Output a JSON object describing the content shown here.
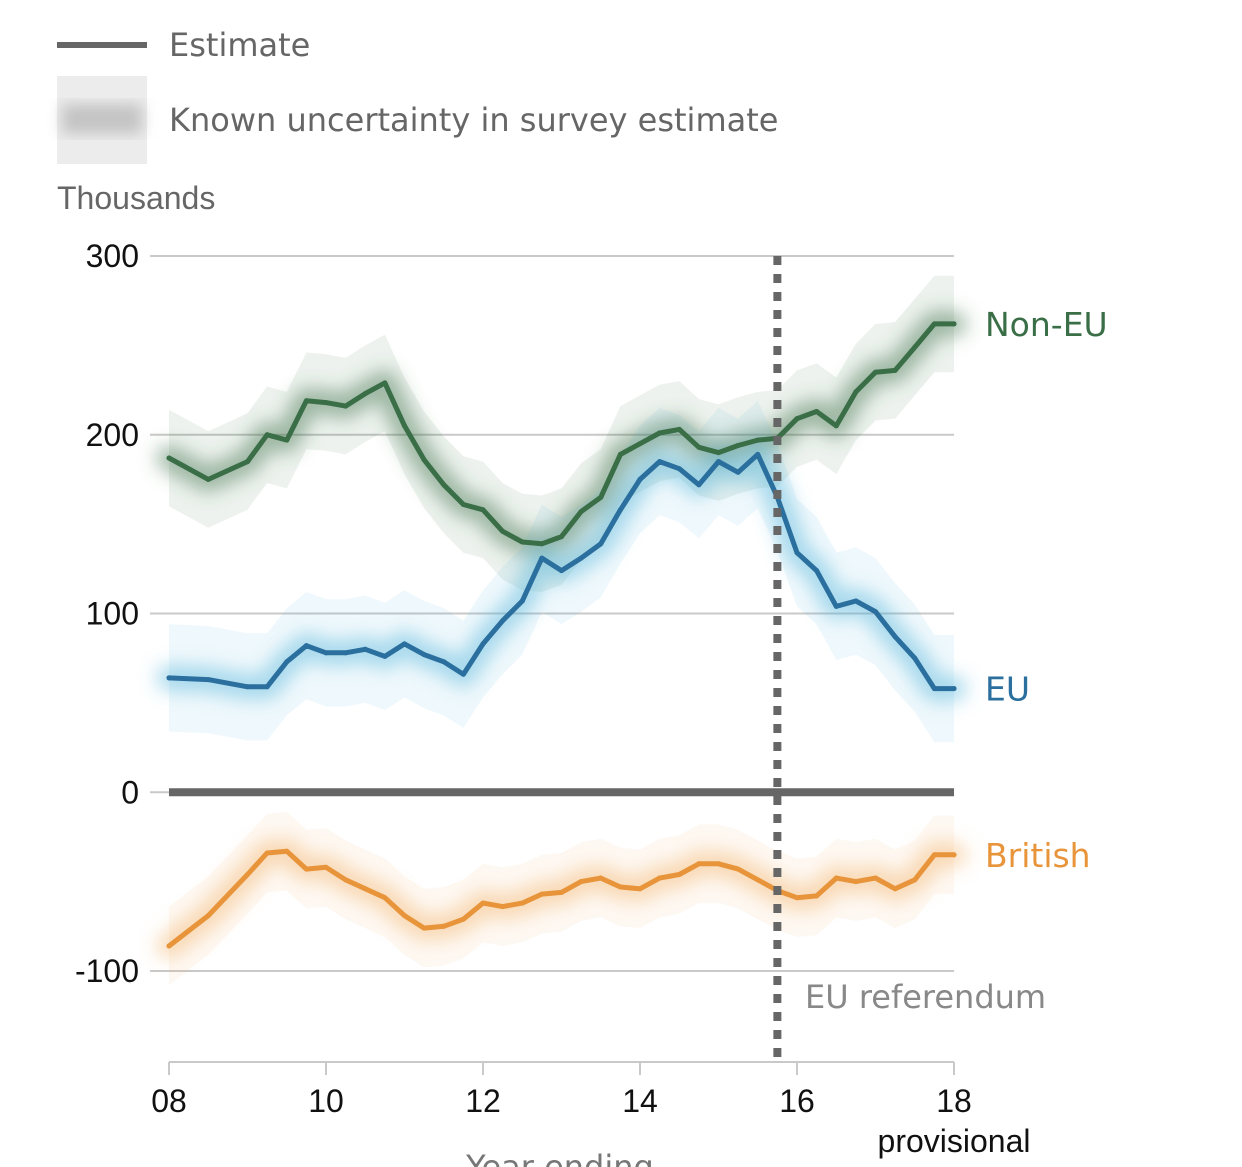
{
  "chart_data": {
    "type": "line",
    "legend": {
      "estimate_label": "Estimate",
      "uncertainty_label": "Known uncertainty in survey estimate"
    },
    "unit_label": "Thousands",
    "xlabel": "Year ending",
    "x_ticks": [
      "08",
      "10",
      "12",
      "14",
      "16",
      "18"
    ],
    "x_tick_values": [
      2008,
      2010,
      2012,
      2014,
      2016,
      2018
    ],
    "x_tick_note": "provisional",
    "xlim": [
      2008,
      2018
    ],
    "ylim": [
      -150,
      300
    ],
    "y_ticks": [
      300,
      200,
      100,
      0,
      -100
    ],
    "y_tick_labels": [
      "300",
      "200",
      "100",
      "0",
      "-100"
    ],
    "grid": true,
    "annotation": {
      "label": "EU referendum",
      "x": 2015.75
    },
    "series": [
      {
        "name": "Non-EU",
        "color": "#3a6e47",
        "band_color": "#3a6e47",
        "uncertainty": 27,
        "x": [
          2008.0,
          2008.5,
          2009.0,
          2009.25,
          2009.5,
          2009.75,
          2010.0,
          2010.25,
          2010.5,
          2010.75,
          2011.0,
          2011.25,
          2011.5,
          2011.75,
          2012.0,
          2012.25,
          2012.5,
          2012.75,
          2013.0,
          2013.25,
          2013.5,
          2013.75,
          2014.0,
          2014.25,
          2014.5,
          2014.75,
          2015.0,
          2015.25,
          2015.5,
          2015.75,
          2016.0,
          2016.25,
          2016.5,
          2016.75,
          2017.0,
          2017.25,
          2017.5,
          2017.75,
          2018.0
        ],
        "values": [
          187,
          175,
          185,
          200,
          197,
          219,
          218,
          216,
          223,
          229,
          205,
          186,
          172,
          161,
          158,
          146,
          140,
          139,
          143,
          157,
          165,
          189,
          195,
          201,
          203,
          193,
          190,
          194,
          197,
          198,
          209,
          213,
          205,
          224,
          235,
          236,
          249,
          262,
          262
        ]
      },
      {
        "name": "EU",
        "color": "#2a6f9e",
        "band_color": "#4fb3d9",
        "uncertainty": 30,
        "x": [
          2008.0,
          2008.5,
          2009.0,
          2009.25,
          2009.5,
          2009.75,
          2010.0,
          2010.25,
          2010.5,
          2010.75,
          2011.0,
          2011.25,
          2011.5,
          2011.75,
          2012.0,
          2012.25,
          2012.5,
          2012.75,
          2013.0,
          2013.25,
          2013.5,
          2013.75,
          2014.0,
          2014.25,
          2014.5,
          2014.75,
          2015.0,
          2015.25,
          2015.5,
          2015.75,
          2016.0,
          2016.25,
          2016.5,
          2016.75,
          2017.0,
          2017.25,
          2017.5,
          2017.75,
          2018.0
        ],
        "values": [
          64,
          63,
          59,
          59,
          73,
          82,
          78,
          78,
          80,
          76,
          83,
          77,
          73,
          66,
          83,
          96,
          107,
          131,
          124,
          131,
          139,
          158,
          175,
          185,
          181,
          172,
          185,
          179,
          189,
          165,
          134,
          124,
          104,
          107,
          101,
          87,
          75,
          58,
          58
        ]
      },
      {
        "name": "British",
        "color": "#e8943a",
        "band_color": "#f2b36a",
        "uncertainty": 22,
        "x": [
          2008.0,
          2008.5,
          2009.0,
          2009.25,
          2009.5,
          2009.75,
          2010.0,
          2010.25,
          2010.5,
          2010.75,
          2011.0,
          2011.25,
          2011.5,
          2011.75,
          2012.0,
          2012.25,
          2012.5,
          2012.75,
          2013.0,
          2013.25,
          2013.5,
          2013.75,
          2014.0,
          2014.25,
          2014.5,
          2014.75,
          2015.0,
          2015.25,
          2015.5,
          2015.75,
          2016.0,
          2016.25,
          2016.5,
          2016.75,
          2017.0,
          2017.25,
          2017.5,
          2017.75,
          2018.0
        ],
        "values": [
          -86,
          -69,
          -46,
          -34,
          -33,
          -43,
          -42,
          -49,
          -54,
          -59,
          -69,
          -76,
          -75,
          -71,
          -62,
          -64,
          -62,
          -57,
          -56,
          -50,
          -48,
          -53,
          -54,
          -48,
          -46,
          -40,
          -40,
          -43,
          -49,
          -55,
          -59,
          -58,
          -48,
          -50,
          -48,
          -54,
          -49,
          -35,
          -35
        ]
      }
    ]
  }
}
